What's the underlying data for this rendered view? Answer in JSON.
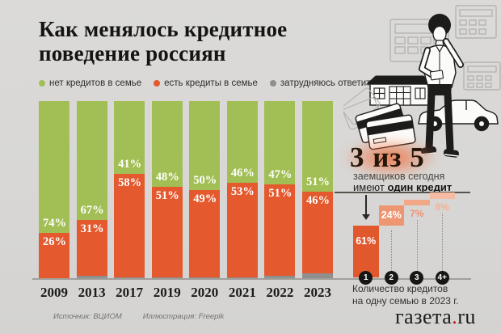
{
  "title": {
    "line1": "Как менялось кредитное",
    "line2": "поведение россиян"
  },
  "legend": {
    "items": [
      {
        "label": "нет кредитов в семье",
        "color": "#a2bf55"
      },
      {
        "label": "есть кредиты в семье",
        "color": "#e4592e"
      },
      {
        "label": "затрудняюсь ответить",
        "color": "#8f8f8d"
      }
    ]
  },
  "chart_data": [
    {
      "type": "bar",
      "stacked": true,
      "categories": [
        "2009",
        "2013",
        "2017",
        "2019",
        "2020",
        "2021",
        "2022",
        "2023"
      ],
      "series": [
        {
          "name": "нет кредитов в семье",
          "color": "#a2bf55",
          "values": [
            74,
            67,
            41,
            48,
            50,
            46,
            47,
            51
          ]
        },
        {
          "name": "есть кредиты в семье",
          "color": "#e4592e",
          "values": [
            26,
            31,
            58,
            51,
            49,
            53,
            51,
            46
          ]
        },
        {
          "name": "затрудняюсь ответить",
          "color": "#8f8f8d",
          "values": [
            0,
            2,
            1,
            1,
            1,
            1,
            2,
            3
          ]
        }
      ],
      "value_suffix": "%",
      "ylim": [
        0,
        100
      ],
      "title": "Как менялось кредитное поведение россиян",
      "legend_position": "top"
    },
    {
      "type": "bar",
      "subtype": "ascending-waterfall",
      "categories": [
        "1",
        "2",
        "3",
        "4+"
      ],
      "values": [
        61,
        24,
        7,
        8
      ],
      "value_suffix": "%",
      "bar_colors": [
        "#e0582c",
        "#ee9572",
        "#f2a787",
        "#f6bba2"
      ],
      "label_styles": [
        "inside",
        "inside",
        "below",
        "below"
      ],
      "out_label_colors": [
        "#ffffff",
        "#ffffff",
        "#ee9372",
        "#f3b096"
      ],
      "xlabel": "Количество кредитов на одну семью в 2023 г.",
      "ylim": [
        0,
        100
      ]
    }
  ],
  "right_panel": {
    "stat_headline": "3 из 5",
    "stat_sub1": "заемщиков сегодня",
    "stat_sub2_prefix": "имеют ",
    "stat_sub2_bold": "один кредит",
    "mini_caption_line1": "Количество кредитов",
    "mini_caption_line2": "на одну семью в 2023 г.",
    "illustration_items": [
      "thinking-man",
      "house",
      "car",
      "credit-cards",
      "calculators"
    ]
  },
  "footer": {
    "source": "Источник: ВЦИОМ",
    "illustration_credit": "Иллюстрация: Freepik",
    "logo_name": "газета",
    "logo_dot": ".",
    "logo_tld": "ru"
  },
  "colors": {
    "background": "#d8d7d5",
    "green": "#a2bf55",
    "orange": "#e4592e",
    "gray": "#8f8f8d",
    "headline_glow": "#f06c3a",
    "logo_dot_red": "#bf170e"
  }
}
